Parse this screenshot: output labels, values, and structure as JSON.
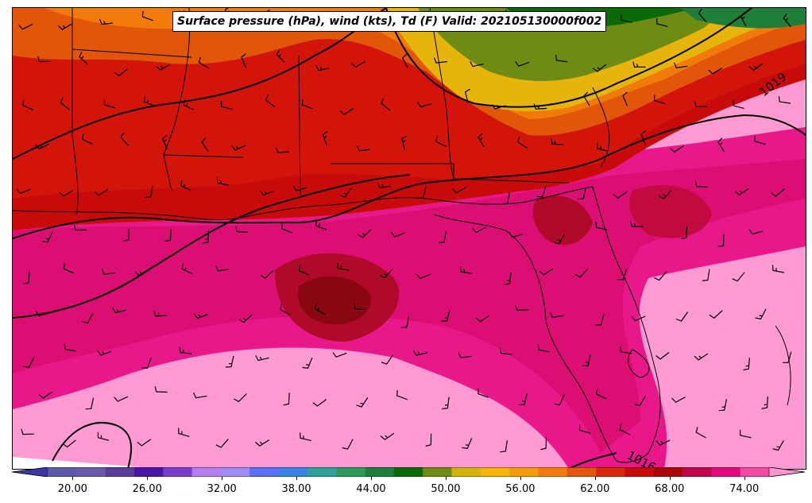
{
  "title": "Surface pressure (hPa), wind (kts), Td (F) Valid: 202105130000f002",
  "isobar_labels": [
    "1019",
    "1016"
  ],
  "colorbar": {
    "colors": [
      "#3a3aa6",
      "#5a5aa8",
      "#6a5aa8",
      "#5a3a9a",
      "#4a14a8",
      "#7a3ccf",
      "#b57ef0",
      "#a08cf6",
      "#5a70f6",
      "#3a82e6",
      "#2ea09a",
      "#2e9a5a",
      "#1e7e3a",
      "#0a6a0a",
      "#6e8c14",
      "#d4b40a",
      "#f4b40a",
      "#f59a0a",
      "#f07a0a",
      "#e2560a",
      "#d82a0a",
      "#c80a0a",
      "#aa0606",
      "#c0064a",
      "#e20a7a",
      "#f04aa2",
      "#ff94d0"
    ],
    "ticks": [
      "20.00",
      "26.00",
      "32.00",
      "38.00",
      "44.00",
      "50.00",
      "56.00",
      "62.00",
      "68.00",
      "74.00"
    ],
    "min": 18,
    "max": 76
  },
  "legend": {
    "pressure_units": "hPa",
    "wind_units": "kts",
    "dewpoint_units": "F"
  }
}
